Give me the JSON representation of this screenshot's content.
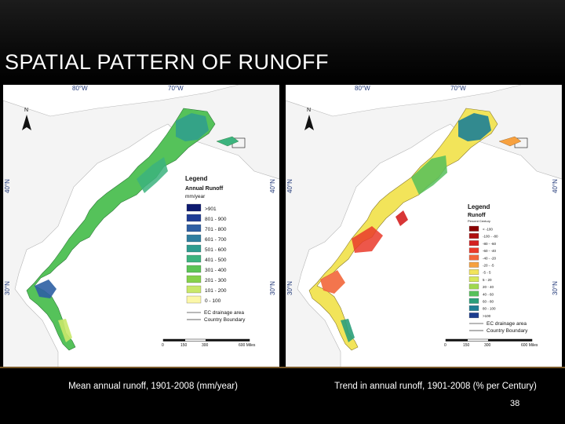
{
  "slide": {
    "title": "SPATIAL PATTERN OF RUNOFF",
    "page_number": "38"
  },
  "maps": [
    {
      "caption": "Mean annual runoff, 1901-2008 (mm/year)",
      "graticule": {
        "top": [
          "80°W",
          "70°W"
        ],
        "side": [
          "40°N",
          "30°N"
        ]
      },
      "north_arrow": "N",
      "legend": {
        "title": "Legend",
        "subtitle": "Annual Runoff",
        "units": "mm/year",
        "classes": [
          {
            "label": ">901",
            "color": "#0d1a70"
          },
          {
            "label": "801 - 900",
            "color": "#1f3c95"
          },
          {
            "label": "701 - 800",
            "color": "#2e5fa3"
          },
          {
            "label": "601 - 700",
            "color": "#2f7e9f"
          },
          {
            "label": "501 - 600",
            "color": "#2e9c8f"
          },
          {
            "label": "401 - 500",
            "color": "#3cb37e"
          },
          {
            "label": "301 - 400",
            "color": "#5cc455"
          },
          {
            "label": "201 - 300",
            "color": "#86d14a"
          },
          {
            "label": "101 - 200",
            "color": "#c9e86a"
          },
          {
            "label": "0 - 100",
            "color": "#fbf7a8"
          }
        ],
        "lines": [
          "EC drainage area",
          "Country Boundary"
        ]
      },
      "scale": {
        "ticks": [
          "0",
          "150",
          "300",
          "600 Miles"
        ]
      }
    },
    {
      "caption": "Trend in annual runoff, 1901-2008 (% per Century)",
      "graticule": {
        "top": [
          "80°W",
          "70°W"
        ],
        "side": [
          "40°N",
          "30°N"
        ]
      },
      "north_arrow": "N",
      "legend": {
        "title": "Legend",
        "subtitle": "Runoff",
        "units": "Percent Century",
        "classes": [
          {
            "label": "< -100",
            "color": "#8b0000"
          },
          {
            "label": "-100 - -80",
            "color": "#b01010"
          },
          {
            "label": "-80 - -60",
            "color": "#d42020"
          },
          {
            "label": "-60 - -40",
            "color": "#ea3a2a"
          },
          {
            "label": "-40 - -20",
            "color": "#f2663a"
          },
          {
            "label": "-20 - -5",
            "color": "#f7a13f"
          },
          {
            "label": "-5 - 5",
            "color": "#f2e45a"
          },
          {
            "label": "5 - 20",
            "color": "#d7e85a"
          },
          {
            "label": "20 - 40",
            "color": "#9fd84f"
          },
          {
            "label": "40 - 60",
            "color": "#56c05a"
          },
          {
            "label": "60 - 80",
            "color": "#2a9f7a"
          },
          {
            "label": "80 - 100",
            "color": "#1d7f95"
          },
          {
            "label": ">100",
            "color": "#1c3d8f"
          }
        ],
        "lines": [
          "EC drainage area",
          "Country Boundary"
        ]
      },
      "scale": {
        "ticks": [
          "0",
          "150",
          "300",
          "600 Miles"
        ]
      }
    }
  ]
}
